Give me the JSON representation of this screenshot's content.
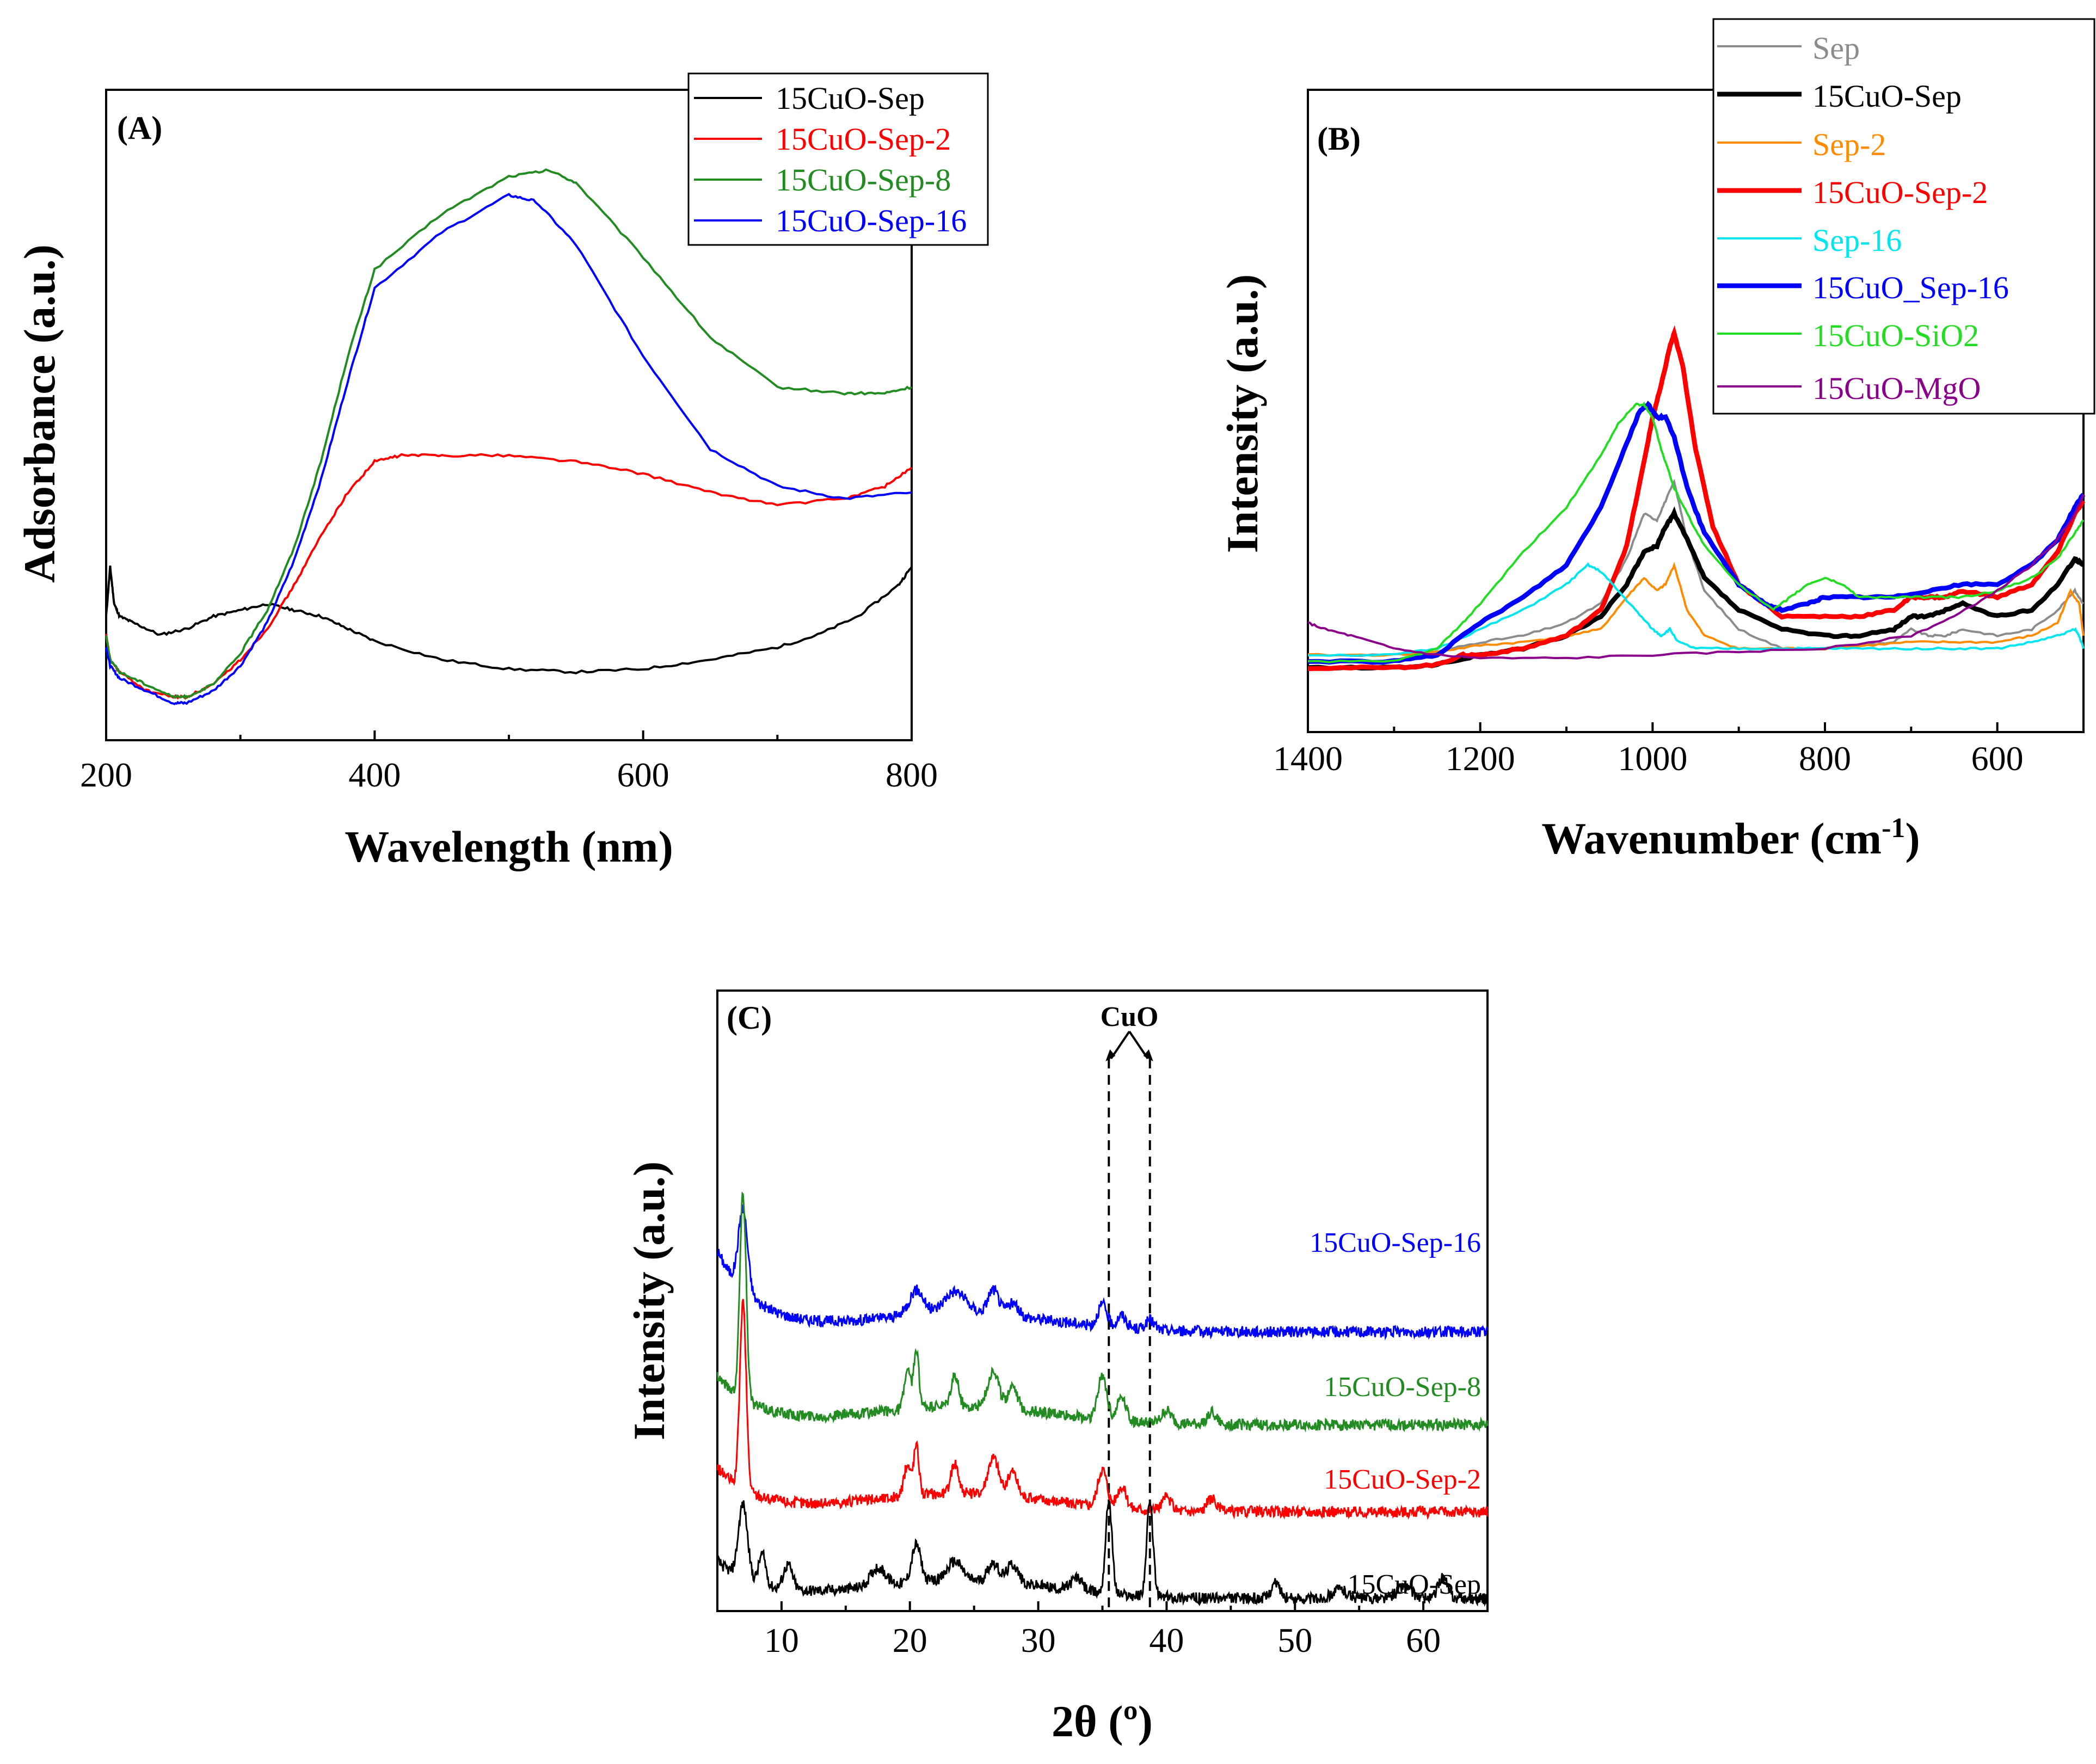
{
  "chart_data": [
    {
      "type": "line",
      "panel_label": "(A)",
      "title": "",
      "xlabel": "Wavelength (nm)",
      "ylabel": "Adsorbance (a.u.)",
      "xlim": [
        200,
        800
      ],
      "ylim": [
        0,
        1
      ],
      "xticks": [
        200,
        400,
        600,
        800
      ],
      "y_ticklabels": false,
      "grid": false,
      "legend_position": "top-right",
      "series": [
        {
          "name": "15CuO-Sep",
          "color": "#000000",
          "x": [
            200,
            203,
            206,
            210,
            220,
            240,
            260,
            280,
            300,
            320,
            340,
            360,
            380,
            400,
            450,
            500,
            550,
            600,
            650,
            700,
            730,
            760,
            790,
            800
          ],
          "y": [
            0.2,
            0.28,
            0.22,
            0.2,
            0.19,
            0.17,
            0.18,
            0.2,
            0.21,
            0.22,
            0.21,
            0.2,
            0.18,
            0.16,
            0.13,
            0.115,
            0.11,
            0.115,
            0.13,
            0.15,
            0.17,
            0.2,
            0.25,
            0.28
          ]
        },
        {
          "name": "15CuO-Sep-2",
          "color": "#ff0000",
          "x": [
            200,
            203,
            210,
            230,
            250,
            260,
            280,
            300,
            320,
            340,
            360,
            380,
            400,
            420,
            450,
            500,
            550,
            600,
            650,
            700,
            750,
            780,
            800
          ],
          "y": [
            0.17,
            0.13,
            0.11,
            0.08,
            0.07,
            0.07,
            0.09,
            0.13,
            0.18,
            0.25,
            0.33,
            0.4,
            0.45,
            0.46,
            0.46,
            0.46,
            0.45,
            0.43,
            0.4,
            0.38,
            0.39,
            0.41,
            0.44
          ]
        },
        {
          "name": "15CuO-Sep-8",
          "color": "#228b22",
          "x": [
            200,
            203,
            210,
            230,
            250,
            260,
            280,
            300,
            320,
            340,
            360,
            380,
            400,
            450,
            500,
            530,
            550,
            600,
            650,
            700,
            750,
            780,
            800
          ],
          "y": [
            0.17,
            0.13,
            0.11,
            0.09,
            0.07,
            0.07,
            0.09,
            0.14,
            0.21,
            0.31,
            0.45,
            0.62,
            0.76,
            0.85,
            0.91,
            0.92,
            0.9,
            0.78,
            0.65,
            0.57,
            0.56,
            0.56,
            0.57
          ]
        },
        {
          "name": "15CuO-Sep-16",
          "color": "#0000ff",
          "x": [
            200,
            203,
            210,
            230,
            250,
            260,
            280,
            300,
            320,
            340,
            360,
            380,
            400,
            450,
            500,
            520,
            550,
            600,
            650,
            700,
            750,
            800
          ],
          "y": [
            0.15,
            0.12,
            0.1,
            0.08,
            0.06,
            0.06,
            0.08,
            0.12,
            0.19,
            0.29,
            0.42,
            0.58,
            0.73,
            0.82,
            0.88,
            0.87,
            0.8,
            0.62,
            0.47,
            0.41,
            0.39,
            0.4
          ]
        }
      ]
    },
    {
      "type": "line",
      "panel_label": "(B)",
      "title": "",
      "xlabel": "Wavenumber (cm",
      "xlabel_superscript": "-1",
      "xlabel_suffix": ")",
      "ylabel": "Intensity (a.u.)",
      "xlim": [
        1400,
        500
      ],
      "ylim": [
        0,
        1
      ],
      "xticks": [
        1400,
        1200,
        1000,
        800,
        600
      ],
      "y_ticklabels": false,
      "grid": false,
      "legend_position": "top-right",
      "series": [
        {
          "name": "Sep",
          "color": "#8c8c8c",
          "width": 1,
          "x": [
            1400,
            1300,
            1250,
            1200,
            1150,
            1100,
            1060,
            1030,
            1010,
            995,
            985,
            975,
            960,
            940,
            900,
            850,
            800,
            760,
            720,
            700,
            680,
            660,
            640,
            600,
            560,
            530,
            510,
            500
          ],
          "y": [
            0.12,
            0.12,
            0.125,
            0.14,
            0.15,
            0.17,
            0.2,
            0.27,
            0.34,
            0.33,
            0.36,
            0.39,
            0.3,
            0.22,
            0.16,
            0.13,
            0.13,
            0.135,
            0.14,
            0.16,
            0.15,
            0.15,
            0.16,
            0.15,
            0.16,
            0.19,
            0.22,
            0.2
          ]
        },
        {
          "name": "15CuO-Sep",
          "color": "#000000",
          "width": 2.2,
          "x": [
            1400,
            1300,
            1250,
            1200,
            1150,
            1100,
            1060,
            1030,
            1010,
            995,
            985,
            975,
            960,
            940,
            900,
            850,
            800,
            760,
            720,
            700,
            680,
            660,
            640,
            600,
            560,
            530,
            510,
            500
          ],
          "y": [
            0.1,
            0.1,
            0.105,
            0.12,
            0.13,
            0.15,
            0.18,
            0.23,
            0.28,
            0.29,
            0.32,
            0.34,
            0.3,
            0.24,
            0.19,
            0.16,
            0.15,
            0.15,
            0.16,
            0.18,
            0.18,
            0.19,
            0.2,
            0.18,
            0.19,
            0.23,
            0.27,
            0.26
          ]
        },
        {
          "name": "Sep-2",
          "color": "#ff8c00",
          "width": 1,
          "x": [
            1400,
            1300,
            1250,
            1200,
            1150,
            1100,
            1060,
            1030,
            1010,
            995,
            985,
            975,
            960,
            940,
            900,
            850,
            800,
            750,
            700,
            650,
            600,
            560,
            530,
            515,
            505,
            500
          ],
          "y": [
            0.12,
            0.12,
            0.125,
            0.135,
            0.14,
            0.15,
            0.16,
            0.21,
            0.24,
            0.22,
            0.23,
            0.26,
            0.19,
            0.15,
            0.13,
            0.13,
            0.13,
            0.135,
            0.14,
            0.14,
            0.14,
            0.15,
            0.17,
            0.22,
            0.2,
            0.15
          ]
        },
        {
          "name": "15CuO-Sep-2",
          "color": "#ff0000",
          "width": 2.2,
          "x": [
            1400,
            1300,
            1250,
            1220,
            1200,
            1150,
            1100,
            1060,
            1030,
            1010,
            1000,
            990,
            980,
            975,
            965,
            950,
            930,
            900,
            850,
            800,
            760,
            720,
            700,
            680,
            660,
            640,
            600,
            560,
            530,
            510,
            500
          ],
          "y": [
            0.1,
            0.1,
            0.105,
            0.12,
            0.12,
            0.13,
            0.15,
            0.19,
            0.29,
            0.42,
            0.49,
            0.54,
            0.6,
            0.62,
            0.57,
            0.44,
            0.32,
            0.23,
            0.18,
            0.18,
            0.18,
            0.19,
            0.21,
            0.21,
            0.21,
            0.22,
            0.21,
            0.23,
            0.28,
            0.34,
            0.36
          ]
        },
        {
          "name": "Sep-16",
          "color": "#00e5ee",
          "width": 1,
          "x": [
            1400,
            1300,
            1250,
            1200,
            1150,
            1100,
            1075,
            1060,
            1040,
            1020,
            1000,
            990,
            980,
            970,
            950,
            900,
            850,
            800,
            750,
            700,
            650,
            600,
            560,
            530,
            510,
            505,
            500
          ],
          "y": [
            0.12,
            0.12,
            0.13,
            0.16,
            0.19,
            0.23,
            0.26,
            0.25,
            0.22,
            0.19,
            0.16,
            0.15,
            0.16,
            0.14,
            0.13,
            0.13,
            0.13,
            0.13,
            0.13,
            0.13,
            0.13,
            0.13,
            0.14,
            0.15,
            0.16,
            0.15,
            0.13
          ]
        },
        {
          "name": "15CuO_Sep-16",
          "color": "#0000ff",
          "width": 2.2,
          "x": [
            1400,
            1300,
            1250,
            1200,
            1150,
            1100,
            1060,
            1030,
            1015,
            1005,
            995,
            985,
            975,
            960,
            940,
            900,
            870,
            850,
            820,
            800,
            760,
            720,
            680,
            640,
            600,
            560,
            530,
            510,
            500
          ],
          "y": [
            0.11,
            0.11,
            0.12,
            0.17,
            0.21,
            0.26,
            0.35,
            0.45,
            0.5,
            0.51,
            0.49,
            0.49,
            0.46,
            0.38,
            0.31,
            0.23,
            0.2,
            0.19,
            0.2,
            0.21,
            0.21,
            0.21,
            0.22,
            0.23,
            0.23,
            0.26,
            0.3,
            0.35,
            0.37
          ]
        },
        {
          "name": "15CuO-SiO2",
          "color": "#22dd22",
          "width": 1,
          "x": [
            1400,
            1300,
            1250,
            1220,
            1200,
            1150,
            1100,
            1060,
            1040,
            1020,
            1010,
            1000,
            990,
            975,
            960,
            940,
            900,
            860,
            840,
            820,
            800,
            780,
            760,
            720,
            680,
            640,
            600,
            560,
            530,
            510,
            500
          ],
          "y": [
            0.11,
            0.11,
            0.13,
            0.17,
            0.2,
            0.28,
            0.35,
            0.43,
            0.48,
            0.51,
            0.51,
            0.49,
            0.44,
            0.38,
            0.34,
            0.29,
            0.23,
            0.19,
            0.21,
            0.23,
            0.24,
            0.23,
            0.21,
            0.21,
            0.21,
            0.21,
            0.22,
            0.24,
            0.27,
            0.31,
            0.33
          ]
        },
        {
          "name": "15CuO-MgO",
          "color": "#8b008b",
          "width": 1,
          "x": [
            1400,
            1380,
            1350,
            1300,
            1250,
            1200,
            1100,
            1000,
            900,
            800,
            700,
            650,
            600,
            560,
            530,
            510,
            500
          ],
          "y": [
            0.17,
            0.16,
            0.15,
            0.13,
            0.12,
            0.115,
            0.115,
            0.12,
            0.125,
            0.13,
            0.15,
            0.18,
            0.22,
            0.26,
            0.3,
            0.34,
            0.37
          ]
        }
      ]
    },
    {
      "type": "line",
      "panel_label": "(C)",
      "title": "",
      "xlabel": "2θ (º)",
      "ylabel": "Intensity (a.u.)",
      "xlim": [
        5,
        65
      ],
      "ylim": [
        0,
        1
      ],
      "xticks": [
        10,
        20,
        30,
        40,
        50,
        60
      ],
      "y_ticklabels": false,
      "grid": false,
      "annotation": "CuO",
      "annotation_lines_x": [
        35.5,
        38.7
      ],
      "peaks_x": [
        7,
        8.5,
        10.5,
        12,
        17.5,
        19.8,
        20.5,
        23.5,
        26.5,
        28,
        33,
        35,
        35.5,
        36.5,
        38.7,
        40,
        43.5,
        48.5,
        53.5,
        58.5,
        61.5
      ],
      "series": [
        {
          "name": "15CuO-Sep-16",
          "color": "#0000ff",
          "offset": 0.45,
          "peaks": [
            [
              7,
              0.13,
              0.5
            ],
            [
              20.5,
              0.04,
              0.8
            ],
            [
              23.5,
              0.035,
              1.2
            ],
            [
              26.5,
              0.04,
              0.6
            ],
            [
              28,
              0.02,
              0.6
            ],
            [
              35,
              0.035,
              0.5
            ],
            [
              36.5,
              0.02,
              0.5
            ],
            [
              38.7,
              0.015,
              0.5
            ]
          ],
          "decay": 0.13
        },
        {
          "name": "15CuO-Sep-8",
          "color": "#228b22",
          "offset": 0.3,
          "peaks": [
            [
              7,
              0.33,
              0.35
            ],
            [
              19.8,
              0.06,
              0.35
            ],
            [
              20.5,
              0.09,
              0.3
            ],
            [
              23.5,
              0.05,
              0.4
            ],
            [
              26.5,
              0.06,
              0.6
            ],
            [
              28,
              0.04,
              0.5
            ],
            [
              35,
              0.07,
              0.5
            ],
            [
              36.5,
              0.04,
              0.5
            ],
            [
              40,
              0.02,
              0.5
            ],
            [
              43.5,
              0.02,
              0.5
            ]
          ],
          "decay": 0.08
        },
        {
          "name": "15CuO-Sep-2",
          "color": "#ff0000",
          "offset": 0.16,
          "peaks": [
            [
              7,
              0.3,
              0.35
            ],
            [
              19.8,
              0.05,
              0.35
            ],
            [
              20.5,
              0.08,
              0.3
            ],
            [
              23.5,
              0.05,
              0.4
            ],
            [
              26.5,
              0.06,
              0.6
            ],
            [
              28,
              0.04,
              0.5
            ],
            [
              35,
              0.06,
              0.5
            ],
            [
              36.5,
              0.035,
              0.5
            ],
            [
              40,
              0.02,
              0.5
            ],
            [
              43.5,
              0.02,
              0.5
            ]
          ],
          "decay": 0.07
        },
        {
          "name": "15CuO-Sep",
          "color": "#000000",
          "offset": 0.02,
          "peaks": [
            [
              7,
              0.12,
              0.5
            ],
            [
              8.5,
              0.05,
              0.4
            ],
            [
              10.5,
              0.04,
              0.5
            ],
            [
              17.5,
              0.03,
              0.8
            ],
            [
              20.5,
              0.06,
              0.5
            ],
            [
              23.5,
              0.03,
              0.8
            ],
            [
              26.5,
              0.03,
              0.6
            ],
            [
              28,
              0.03,
              0.6
            ],
            [
              33,
              0.02,
              0.6
            ],
            [
              35.5,
              0.15,
              0.35
            ],
            [
              38.7,
              0.15,
              0.35
            ],
            [
              48.5,
              0.025,
              0.5
            ],
            [
              53.5,
              0.015,
              0.8
            ],
            [
              58.5,
              0.02,
              0.8
            ],
            [
              61.5,
              0.035,
              0.5
            ]
          ],
          "decay": 0.06
        }
      ]
    }
  ],
  "colors": {
    "black": "#000000",
    "red": "#ff0000",
    "green": "#228b22",
    "blue": "#0000ff",
    "gray": "#8c8c8c",
    "orange": "#ff8c00",
    "cyan": "#00e5ee",
    "lime": "#22dd22",
    "purple": "#8b008b"
  }
}
